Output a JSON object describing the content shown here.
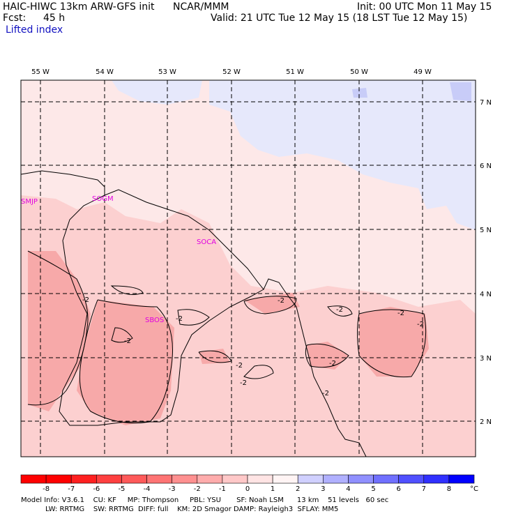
{
  "header": {
    "model": "HAIC-HIWC 13km ARW-GFS init",
    "org": "NCAR/MMM",
    "init": "Init: 00 UTC Mon 11 May 15",
    "fcst_label": "Fcst:",
    "fcst_value": "45 h",
    "valid": "Valid: 21 UTC Tue 12 May 15 (18 LST Tue 12 May 15)",
    "field": "Lifted index"
  },
  "map": {
    "lon_labels": [
      "55 W",
      "54 W",
      "53 W",
      "52 W",
      "51 W",
      "50 W",
      "49 W"
    ],
    "lat_labels": [
      "7 N",
      "6 N",
      "5 N",
      "4 N",
      "3 N",
      "2 N"
    ],
    "stations": [
      "SMJP",
      "SOGM",
      "SOCA",
      "SBOS"
    ],
    "contour_labels": [
      "-2",
      "-2",
      "-2",
      "-2",
      "-2",
      "-2",
      "-2",
      "-2",
      "-2",
      "-2",
      "-2"
    ],
    "colors": {
      "neg_faint": "#fde8e8",
      "neg_light": "#fcd0d0",
      "neg_mid": "#f7a9a9",
      "pos_faint": "#e6e8fb",
      "pos_light": "#c8ccf8"
    }
  },
  "colorbar": {
    "labels": [
      "-8",
      "-7",
      "-6",
      "-5",
      "-4",
      "-3",
      "-2",
      "-1",
      "0",
      "1",
      "2",
      "3",
      "4",
      "5",
      "6",
      "7",
      "8"
    ],
    "unit": "°C",
    "colors": [
      "#ff0000",
      "#ff2020",
      "#ff4040",
      "#ff5a5a",
      "#ff7474",
      "#ff9090",
      "#ffacac",
      "#ffc8c8",
      "#ffe4e4",
      "#fff4f4",
      "#d0d0ff",
      "#b0b0ff",
      "#9090ff",
      "#7070ff",
      "#5050ff",
      "#3030ff",
      "#0000ff"
    ]
  },
  "footer": {
    "line1": "Model Info: V3.6.1    CU: KF     MP: Thompson     PBL: YSU       SF: Noah LSM      13 km    51 levels   60 sec",
    "line2": "           LW: RRTMG    SW: RRTMG  DIFF: full    KM: 2D Smagor DAMP: Rayleigh3  SFLAY: MM5"
  }
}
